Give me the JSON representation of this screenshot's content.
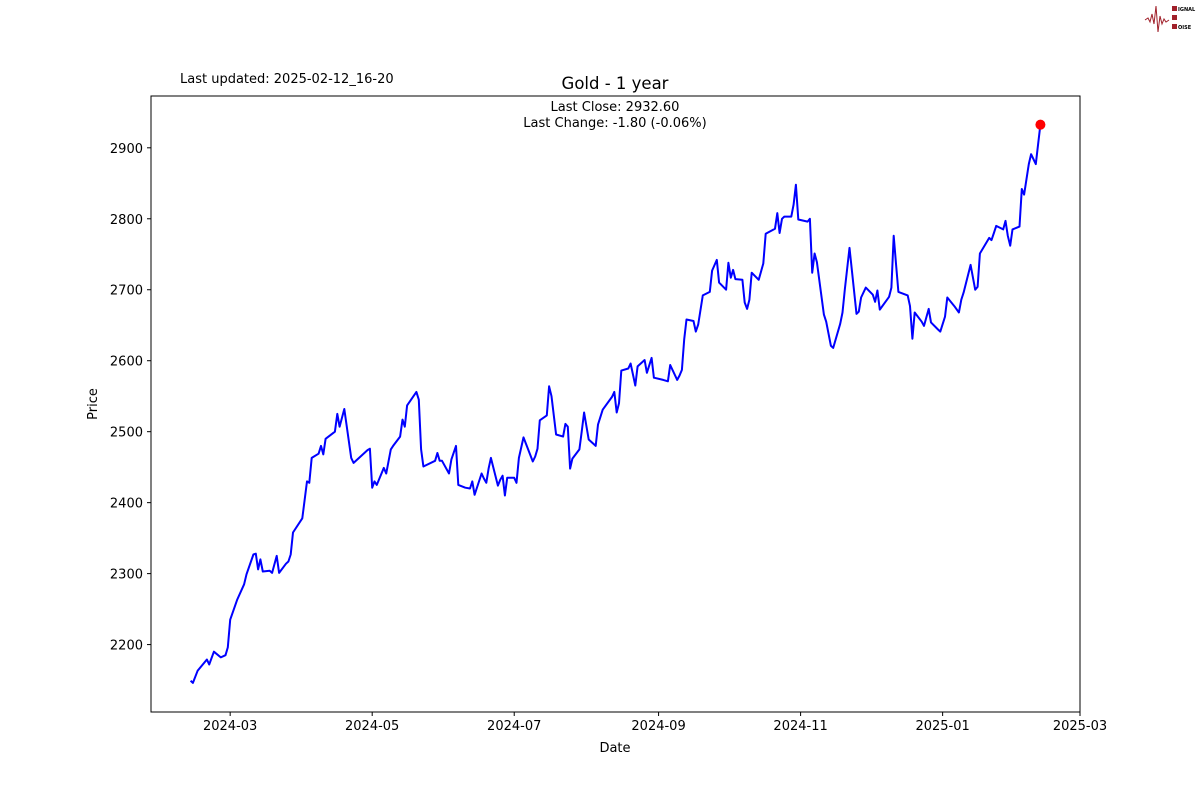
{
  "header": {
    "last_updated": "Last updated: 2025-02-12_16-20",
    "logo_text": "SIGNAL 2 NOISE"
  },
  "chart_data": {
    "type": "line",
    "title": "Gold - 1 year",
    "annotations": [
      "Last Close: 2932.60",
      "Last Change: -1.80 (-0.06%)"
    ],
    "xlabel": "Date",
    "ylabel": "Price",
    "xlim": [
      "2024-01-27",
      "2025-03-01"
    ],
    "ylim": [
      2105,
      2973
    ],
    "x_ticks": [
      "2024-03",
      "2024-05",
      "2024-07",
      "2024-09",
      "2024-11",
      "2025-01",
      "2025-03"
    ],
    "y_ticks": [
      2200,
      2300,
      2400,
      2500,
      2600,
      2700,
      2800,
      2900
    ],
    "grid": false,
    "line_color": "#0000ff",
    "marker_color": "#ff0000",
    "last_point": {
      "date": "2025-02-12",
      "value": 2932.6
    },
    "series": [
      {
        "points": [
          [
            "2024-02-13",
            2149
          ],
          [
            "2024-02-14",
            2146
          ],
          [
            "2024-02-16",
            2163
          ],
          [
            "2024-02-20",
            2179
          ],
          [
            "2024-02-21",
            2172
          ],
          [
            "2024-02-23",
            2190
          ],
          [
            "2024-02-26",
            2182
          ],
          [
            "2024-02-28",
            2185
          ],
          [
            "2024-02-29",
            2196
          ],
          [
            "2024-03-01",
            2235
          ],
          [
            "2024-03-04",
            2263
          ],
          [
            "2024-03-07",
            2285
          ],
          [
            "2024-03-08",
            2299
          ],
          [
            "2024-03-11",
            2327
          ],
          [
            "2024-03-12",
            2328
          ],
          [
            "2024-03-13",
            2306
          ],
          [
            "2024-03-14",
            2320
          ],
          [
            "2024-03-15",
            2303
          ],
          [
            "2024-03-18",
            2304
          ],
          [
            "2024-03-19",
            2301
          ],
          [
            "2024-03-21",
            2325
          ],
          [
            "2024-03-22",
            2301
          ],
          [
            "2024-03-25",
            2314
          ],
          [
            "2024-03-26",
            2317
          ],
          [
            "2024-03-27",
            2327
          ],
          [
            "2024-03-28",
            2358
          ],
          [
            "2024-04-01",
            2378
          ],
          [
            "2024-04-03",
            2430
          ],
          [
            "2024-04-04",
            2428
          ],
          [
            "2024-04-05",
            2463
          ],
          [
            "2024-04-08",
            2469
          ],
          [
            "2024-04-09",
            2480
          ],
          [
            "2024-04-10",
            2468
          ],
          [
            "2024-04-11",
            2490
          ],
          [
            "2024-04-15",
            2500
          ],
          [
            "2024-04-16",
            2525
          ],
          [
            "2024-04-17",
            2507
          ],
          [
            "2024-04-19",
            2532
          ],
          [
            "2024-04-22",
            2463
          ],
          [
            "2024-04-23",
            2456
          ],
          [
            "2024-04-29",
            2474
          ],
          [
            "2024-04-30",
            2476
          ],
          [
            "2024-05-01",
            2421
          ],
          [
            "2024-05-02",
            2430
          ],
          [
            "2024-05-03",
            2425
          ],
          [
            "2024-05-06",
            2449
          ],
          [
            "2024-05-07",
            2441
          ],
          [
            "2024-05-09",
            2475
          ],
          [
            "2024-05-10",
            2480
          ],
          [
            "2024-05-13",
            2493
          ],
          [
            "2024-05-14",
            2517
          ],
          [
            "2024-05-15",
            2507
          ],
          [
            "2024-05-16",
            2537
          ],
          [
            "2024-05-20",
            2556
          ],
          [
            "2024-05-21",
            2545
          ],
          [
            "2024-05-22",
            2475
          ],
          [
            "2024-05-23",
            2451
          ],
          [
            "2024-05-28",
            2459
          ],
          [
            "2024-05-29",
            2470
          ],
          [
            "2024-05-30",
            2459
          ],
          [
            "2024-05-31",
            2459
          ],
          [
            "2024-06-03",
            2441
          ],
          [
            "2024-06-04",
            2461
          ],
          [
            "2024-06-06",
            2480
          ],
          [
            "2024-06-07",
            2425
          ],
          [
            "2024-06-10",
            2421
          ],
          [
            "2024-06-12",
            2420
          ],
          [
            "2024-06-13",
            2430
          ],
          [
            "2024-06-14",
            2411
          ],
          [
            "2024-06-17",
            2441
          ],
          [
            "2024-06-18",
            2434
          ],
          [
            "2024-06-19",
            2428
          ],
          [
            "2024-06-20",
            2448
          ],
          [
            "2024-06-21",
            2463
          ],
          [
            "2024-06-24",
            2424
          ],
          [
            "2024-06-25",
            2432
          ],
          [
            "2024-06-26",
            2438
          ],
          [
            "2024-06-27",
            2410
          ],
          [
            "2024-06-28",
            2435
          ],
          [
            "2024-07-01",
            2435
          ],
          [
            "2024-07-02",
            2428
          ],
          [
            "2024-07-03",
            2463
          ],
          [
            "2024-07-05",
            2492
          ],
          [
            "2024-07-09",
            2458
          ],
          [
            "2024-07-10",
            2465
          ],
          [
            "2024-07-11",
            2476
          ],
          [
            "2024-07-12",
            2516
          ],
          [
            "2024-07-15",
            2523
          ],
          [
            "2024-07-16",
            2564
          ],
          [
            "2024-07-17",
            2550
          ],
          [
            "2024-07-19",
            2496
          ],
          [
            "2024-07-22",
            2493
          ],
          [
            "2024-07-23",
            2511
          ],
          [
            "2024-07-24",
            2507
          ],
          [
            "2024-07-25",
            2448
          ],
          [
            "2024-07-26",
            2462
          ],
          [
            "2024-07-29",
            2475
          ],
          [
            "2024-07-30",
            2500
          ],
          [
            "2024-07-31",
            2527
          ],
          [
            "2024-08-02",
            2489
          ],
          [
            "2024-08-05",
            2480
          ],
          [
            "2024-08-06",
            2510
          ],
          [
            "2024-08-08",
            2531
          ],
          [
            "2024-08-12",
            2549
          ],
          [
            "2024-08-13",
            2556
          ],
          [
            "2024-08-14",
            2527
          ],
          [
            "2024-08-15",
            2540
          ],
          [
            "2024-08-16",
            2586
          ],
          [
            "2024-08-19",
            2589
          ],
          [
            "2024-08-20",
            2596
          ],
          [
            "2024-08-22",
            2565
          ],
          [
            "2024-08-23",
            2592
          ],
          [
            "2024-08-26",
            2601
          ],
          [
            "2024-08-27",
            2583
          ],
          [
            "2024-08-29",
            2604
          ],
          [
            "2024-08-30",
            2576
          ],
          [
            "2024-09-03",
            2573
          ],
          [
            "2024-09-05",
            2571
          ],
          [
            "2024-09-06",
            2594
          ],
          [
            "2024-09-09",
            2573
          ],
          [
            "2024-09-10",
            2579
          ],
          [
            "2024-09-11",
            2587
          ],
          [
            "2024-09-12",
            2630
          ],
          [
            "2024-09-13",
            2658
          ],
          [
            "2024-09-16",
            2656
          ],
          [
            "2024-09-17",
            2641
          ],
          [
            "2024-09-18",
            2651
          ],
          [
            "2024-09-20",
            2692
          ],
          [
            "2024-09-23",
            2697
          ],
          [
            "2024-09-24",
            2727
          ],
          [
            "2024-09-26",
            2742
          ],
          [
            "2024-09-27",
            2710
          ],
          [
            "2024-09-30",
            2700
          ],
          [
            "2024-10-01",
            2738
          ],
          [
            "2024-10-02",
            2717
          ],
          [
            "2024-10-03",
            2728
          ],
          [
            "2024-10-04",
            2715
          ],
          [
            "2024-10-07",
            2714
          ],
          [
            "2024-10-08",
            2682
          ],
          [
            "2024-10-09",
            2673
          ],
          [
            "2024-10-10",
            2686
          ],
          [
            "2024-10-11",
            2724
          ],
          [
            "2024-10-14",
            2714
          ],
          [
            "2024-10-16",
            2737
          ],
          [
            "2024-10-17",
            2779
          ],
          [
            "2024-10-21",
            2786
          ],
          [
            "2024-10-22",
            2808
          ],
          [
            "2024-10-23",
            2780
          ],
          [
            "2024-10-24",
            2800
          ],
          [
            "2024-10-25",
            2803
          ],
          [
            "2024-10-28",
            2803
          ],
          [
            "2024-10-29",
            2820
          ],
          [
            "2024-10-30",
            2848
          ],
          [
            "2024-10-31",
            2799
          ],
          [
            "2024-11-04",
            2796
          ],
          [
            "2024-11-05",
            2800
          ],
          [
            "2024-11-06",
            2724
          ],
          [
            "2024-11-07",
            2751
          ],
          [
            "2024-11-08",
            2739
          ],
          [
            "2024-11-11",
            2665
          ],
          [
            "2024-11-12",
            2655
          ],
          [
            "2024-11-14",
            2621
          ],
          [
            "2024-11-15",
            2618
          ],
          [
            "2024-11-18",
            2652
          ],
          [
            "2024-11-19",
            2668
          ],
          [
            "2024-11-20",
            2700
          ],
          [
            "2024-11-22",
            2759
          ],
          [
            "2024-11-25",
            2666
          ],
          [
            "2024-11-26",
            2669
          ],
          [
            "2024-11-27",
            2689
          ],
          [
            "2024-11-29",
            2703
          ],
          [
            "2024-12-02",
            2693
          ],
          [
            "2024-12-03",
            2683
          ],
          [
            "2024-12-04",
            2699
          ],
          [
            "2024-12-05",
            2672
          ],
          [
            "2024-12-09",
            2690
          ],
          [
            "2024-12-10",
            2703
          ],
          [
            "2024-12-11",
            2776
          ],
          [
            "2024-12-12",
            2735
          ],
          [
            "2024-12-13",
            2697
          ],
          [
            "2024-12-17",
            2692
          ],
          [
            "2024-12-18",
            2677
          ],
          [
            "2024-12-19",
            2631
          ],
          [
            "2024-12-20",
            2668
          ],
          [
            "2024-12-23",
            2655
          ],
          [
            "2024-12-24",
            2649
          ],
          [
            "2024-12-26",
            2673
          ],
          [
            "2024-12-27",
            2654
          ],
          [
            "2024-12-30",
            2644
          ],
          [
            "2024-12-31",
            2641
          ],
          [
            "2025-01-02",
            2662
          ],
          [
            "2025-01-03",
            2689
          ],
          [
            "2025-01-06",
            2677
          ],
          [
            "2025-01-08",
            2668
          ],
          [
            "2025-01-09",
            2686
          ],
          [
            "2025-01-10",
            2696
          ],
          [
            "2025-01-13",
            2735
          ],
          [
            "2025-01-15",
            2700
          ],
          [
            "2025-01-16",
            2704
          ],
          [
            "2025-01-17",
            2751
          ],
          [
            "2025-01-21",
            2773
          ],
          [
            "2025-01-22",
            2770
          ],
          [
            "2025-01-23",
            2780
          ],
          [
            "2025-01-24",
            2790
          ],
          [
            "2025-01-27",
            2785
          ],
          [
            "2025-01-28",
            2797
          ],
          [
            "2025-01-29",
            2776
          ],
          [
            "2025-01-30",
            2762
          ],
          [
            "2025-01-31",
            2785
          ],
          [
            "2025-02-03",
            2789
          ],
          [
            "2025-02-04",
            2842
          ],
          [
            "2025-02-05",
            2834
          ],
          [
            "2025-02-06",
            2855
          ],
          [
            "2025-02-07",
            2877
          ],
          [
            "2025-02-08",
            2891
          ],
          [
            "2025-02-10",
            2877
          ],
          [
            "2025-02-11",
            2905
          ],
          [
            "2025-02-12",
            2932.6
          ]
        ]
      }
    ]
  }
}
